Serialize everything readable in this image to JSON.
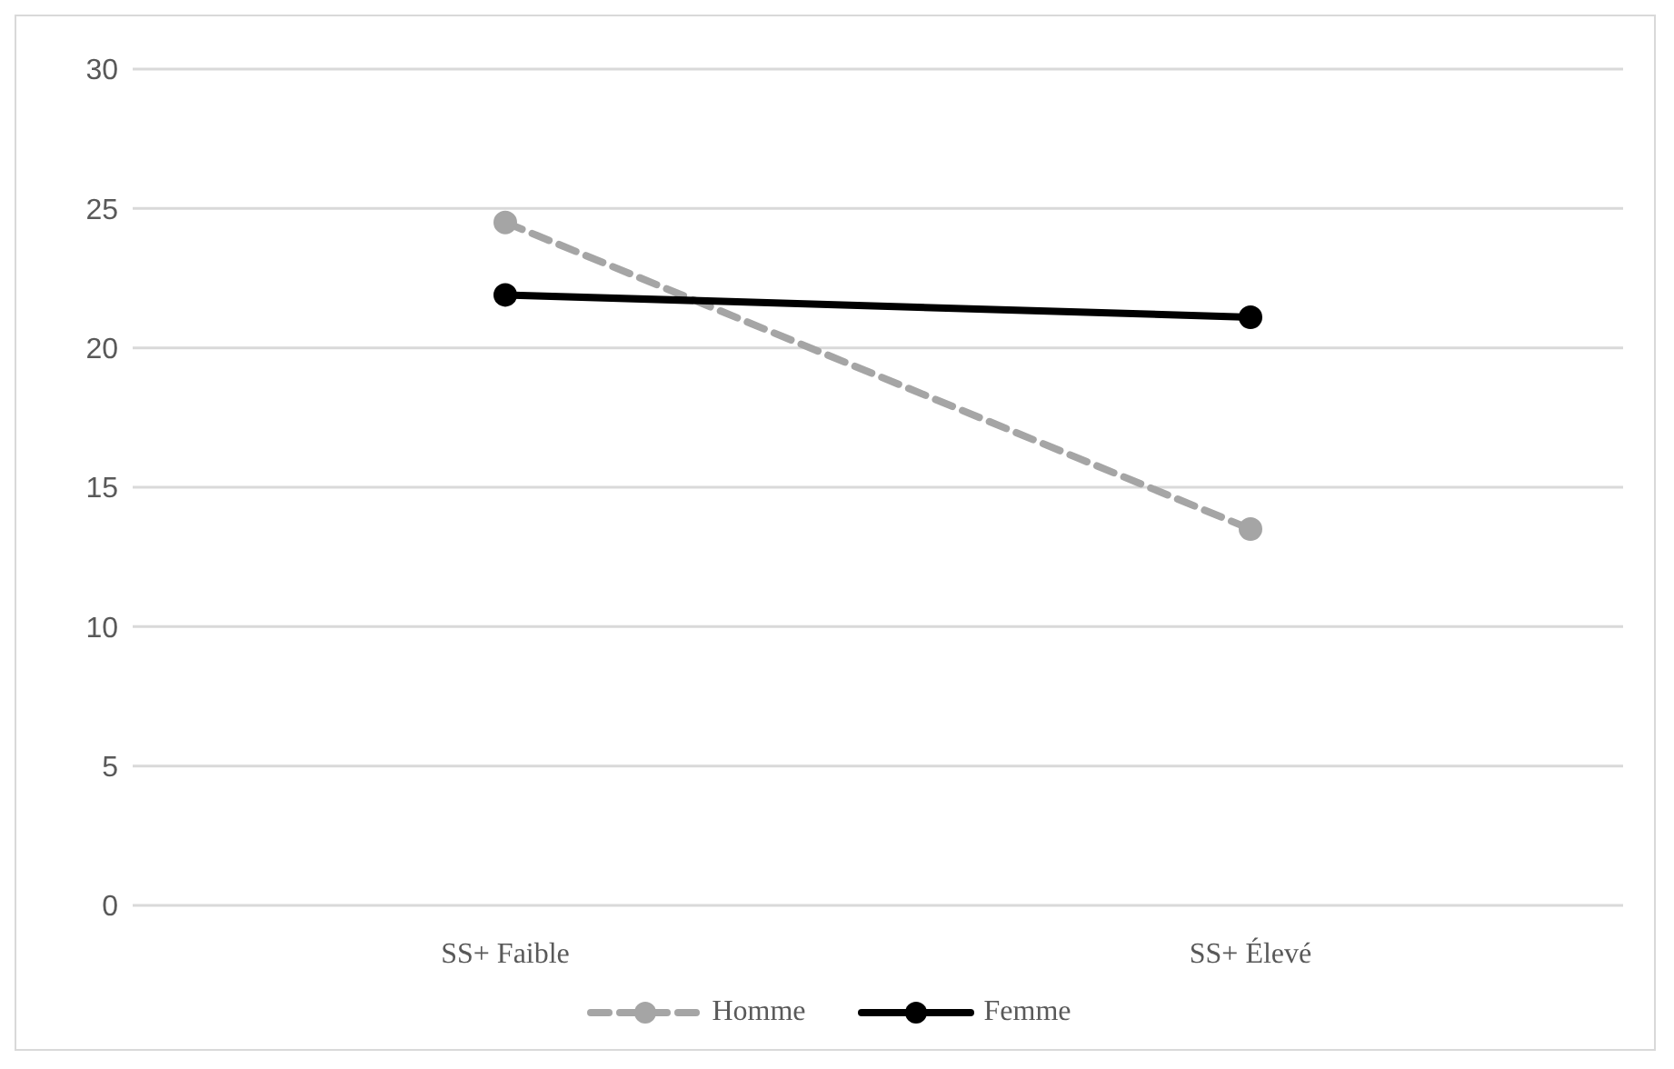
{
  "chart_data": {
    "type": "line",
    "categories": [
      "SS+ Faible",
      "SS+ Élevé"
    ],
    "series": [
      {
        "name": "Homme",
        "color": "#a5a5a5",
        "values": [
          24.5,
          13.5
        ],
        "line_style": "dashed"
      },
      {
        "name": "Femme",
        "color": "#000000",
        "values": [
          21.9,
          21.1
        ],
        "line_style": "solid"
      }
    ],
    "ylim": [
      0,
      30
    ],
    "yticks": [
      0,
      5,
      10,
      15,
      20,
      25,
      30
    ],
    "grid": "y",
    "legend": "bottom",
    "marker": "circle"
  }
}
